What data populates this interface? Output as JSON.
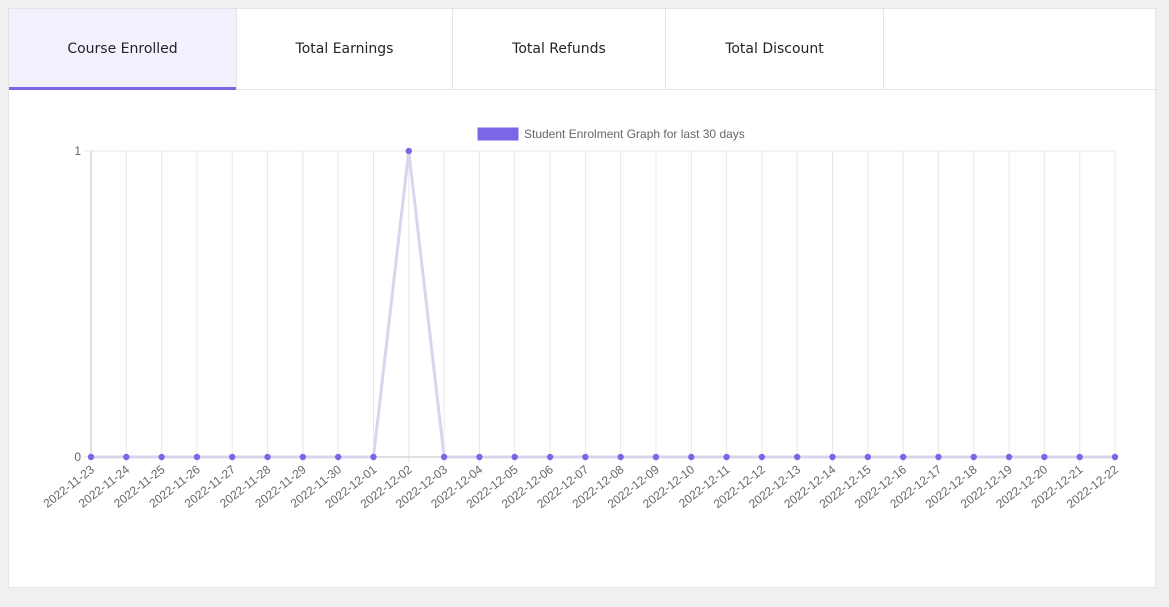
{
  "tabs": [
    {
      "label": "Course Enrolled",
      "active": true
    },
    {
      "label": "Total Earnings",
      "active": false
    },
    {
      "label": "Total Refunds",
      "active": false
    },
    {
      "label": "Total Discount",
      "active": false
    }
  ],
  "colors": {
    "accent": "#7967e8",
    "line": "#d9d6ec",
    "grid": "#e8e8e8",
    "axis": "#666666"
  },
  "chart_data": {
    "type": "line",
    "legend_label": "Student Enrolment Graph for last 30 days",
    "legend_position": "top-center",
    "x": [
      "2022-11-23",
      "2022-11-24",
      "2022-11-25",
      "2022-11-26",
      "2022-11-27",
      "2022-11-28",
      "2022-11-29",
      "2022-11-30",
      "2022-12-01",
      "2022-12-02",
      "2022-12-03",
      "2022-12-04",
      "2022-12-05",
      "2022-12-06",
      "2022-12-07",
      "2022-12-08",
      "2022-12-09",
      "2022-12-10",
      "2022-12-11",
      "2022-12-12",
      "2022-12-13",
      "2022-12-14",
      "2022-12-15",
      "2022-12-16",
      "2022-12-17",
      "2022-12-18",
      "2022-12-19",
      "2022-12-20",
      "2022-12-21",
      "2022-12-22"
    ],
    "series": [
      {
        "name": "Student Enrolment Graph for last 30 days",
        "values": [
          0,
          0,
          0,
          0,
          0,
          0,
          0,
          0,
          0,
          1,
          0,
          0,
          0,
          0,
          0,
          0,
          0,
          0,
          0,
          0,
          0,
          0,
          0,
          0,
          0,
          0,
          0,
          0,
          0,
          0
        ]
      }
    ],
    "y_ticks": [
      0,
      1
    ],
    "ylim": [
      0,
      1
    ],
    "grid": true
  }
}
